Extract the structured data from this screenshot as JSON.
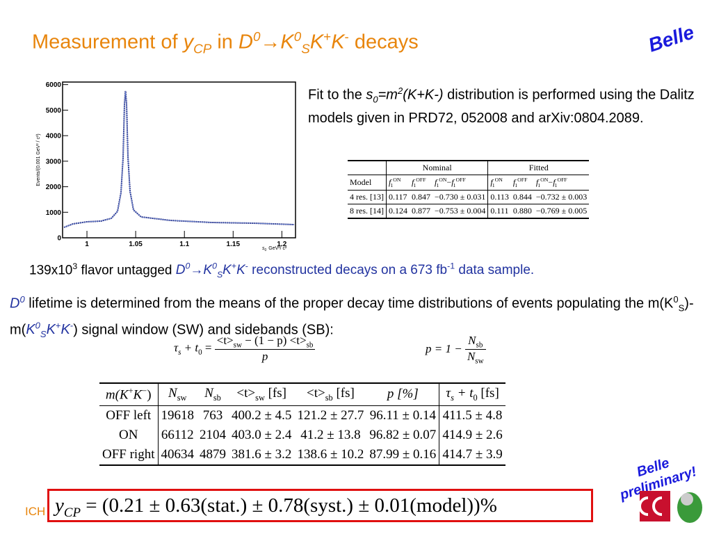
{
  "title": [
    "Measurement of ",
    "y",
    "CP",
    " in ",
    "D",
    "0",
    "→K",
    "0",
    "S",
    "K",
    "+",
    "K",
    "-",
    " decays"
  ],
  "logo": "Belle",
  "plot": {
    "ylabel": "Events/(0.001  GeV² / c²)",
    "xlabel": [
      "s",
      "0",
      "GeV²/ c²"
    ],
    "xlim": [
      0.975,
      1.214
    ],
    "ylim": [
      0,
      6100
    ],
    "xticks": [
      1,
      1.05,
      1.1,
      1.15,
      1.2
    ],
    "yticks": [
      0,
      1000,
      2000,
      3000,
      4000,
      5000,
      6000
    ]
  },
  "fit_text": [
    "Fit to the ",
    "s",
    "0",
    "=m",
    "2",
    "(K+K-)",
    " distribution is performed using the Dalitz models given in PRD72, 052008 and arXiv:0804.2089."
  ],
  "dalitz_table": {
    "groups": [
      "Nominal",
      "Fitted"
    ],
    "model": "Model",
    "symbol": {
      "f": "f",
      "index": "1",
      "on": "ON",
      "off": "OFF",
      "minus": "−"
    },
    "rows": [
      [
        "4 res. [13]",
        "0.117",
        "0.847",
        "−0.730 ± 0.031",
        "0.113",
        "0.844",
        "−0.732 ± 0.003"
      ],
      [
        "8 res. [14]",
        "0.124",
        "0.877",
        "−0.753 ± 0.004",
        "0.111",
        "0.880",
        "−0.769 ± 0.005"
      ]
    ]
  },
  "sample_text": [
    "139x10",
    "3",
    " flavor untagged ",
    "D",
    "0",
    "→K",
    "0",
    "S",
    "K",
    "+",
    "K",
    "-",
    " reconstructed decays on a 673 fb",
    "-1",
    " data sample."
  ],
  "lifetime_text": [
    "D",
    "0",
    " lifetime is determined from the means of the proper decay time distributions of events populating the m(K",
    "0",
    "S",
    ")-m(",
    "K",
    "0",
    "S",
    "K",
    "+",
    "K",
    "-",
    ") signal window (SW) and sidebands (SB):"
  ],
  "formula_tau": {
    "lhs": [
      "τ",
      "s",
      " + t",
      "0",
      " ="
    ],
    "numerator": [
      "<t>",
      "sw",
      " − (1 − p) <t>",
      "sb"
    ],
    "denominator": "p"
  },
  "formula_p": {
    "lhs": "p = 1 −",
    "numerator": [
      "N",
      "sb"
    ],
    "denominator": [
      "N",
      "sw"
    ]
  },
  "measurement_table": {
    "header": [
      [
        "m(K",
        "+",
        "K",
        "−",
        ")"
      ],
      [
        "N",
        "sw"
      ],
      [
        "N",
        "sb"
      ],
      [
        "<t>",
        "sw",
        " [fs]"
      ],
      [
        "<t>",
        "sb",
        " [fs]"
      ],
      [
        "p [%]"
      ],
      [
        "τ",
        "s",
        " + t",
        "0",
        " [fs]"
      ]
    ],
    "rows": [
      [
        "OFF left",
        "19618",
        "763",
        "400.2 ± 4.5",
        "121.2 ± 27.7",
        "96.11 ± 0.14",
        "411.5 ± 4.8"
      ],
      [
        "ON",
        "66112",
        "2104",
        "403.0 ± 2.4",
        "41.2 ± 13.8",
        "96.82 ± 0.07",
        "414.9 ± 2.6"
      ],
      [
        "OFF right",
        "40634",
        "4879",
        "381.6 ± 3.2",
        "138.6 ± 10.2",
        "87.99 ± 0.16",
        "414.7 ± 3.9"
      ]
    ]
  },
  "result": [
    "y",
    "CP",
    " = (0.21 ± 0.63(stat.) ± 0.78(syst.) ± 0.01(model))%"
  ],
  "preliminary": [
    "Belle",
    "preliminary!"
  ],
  "footer": "ICH"
}
